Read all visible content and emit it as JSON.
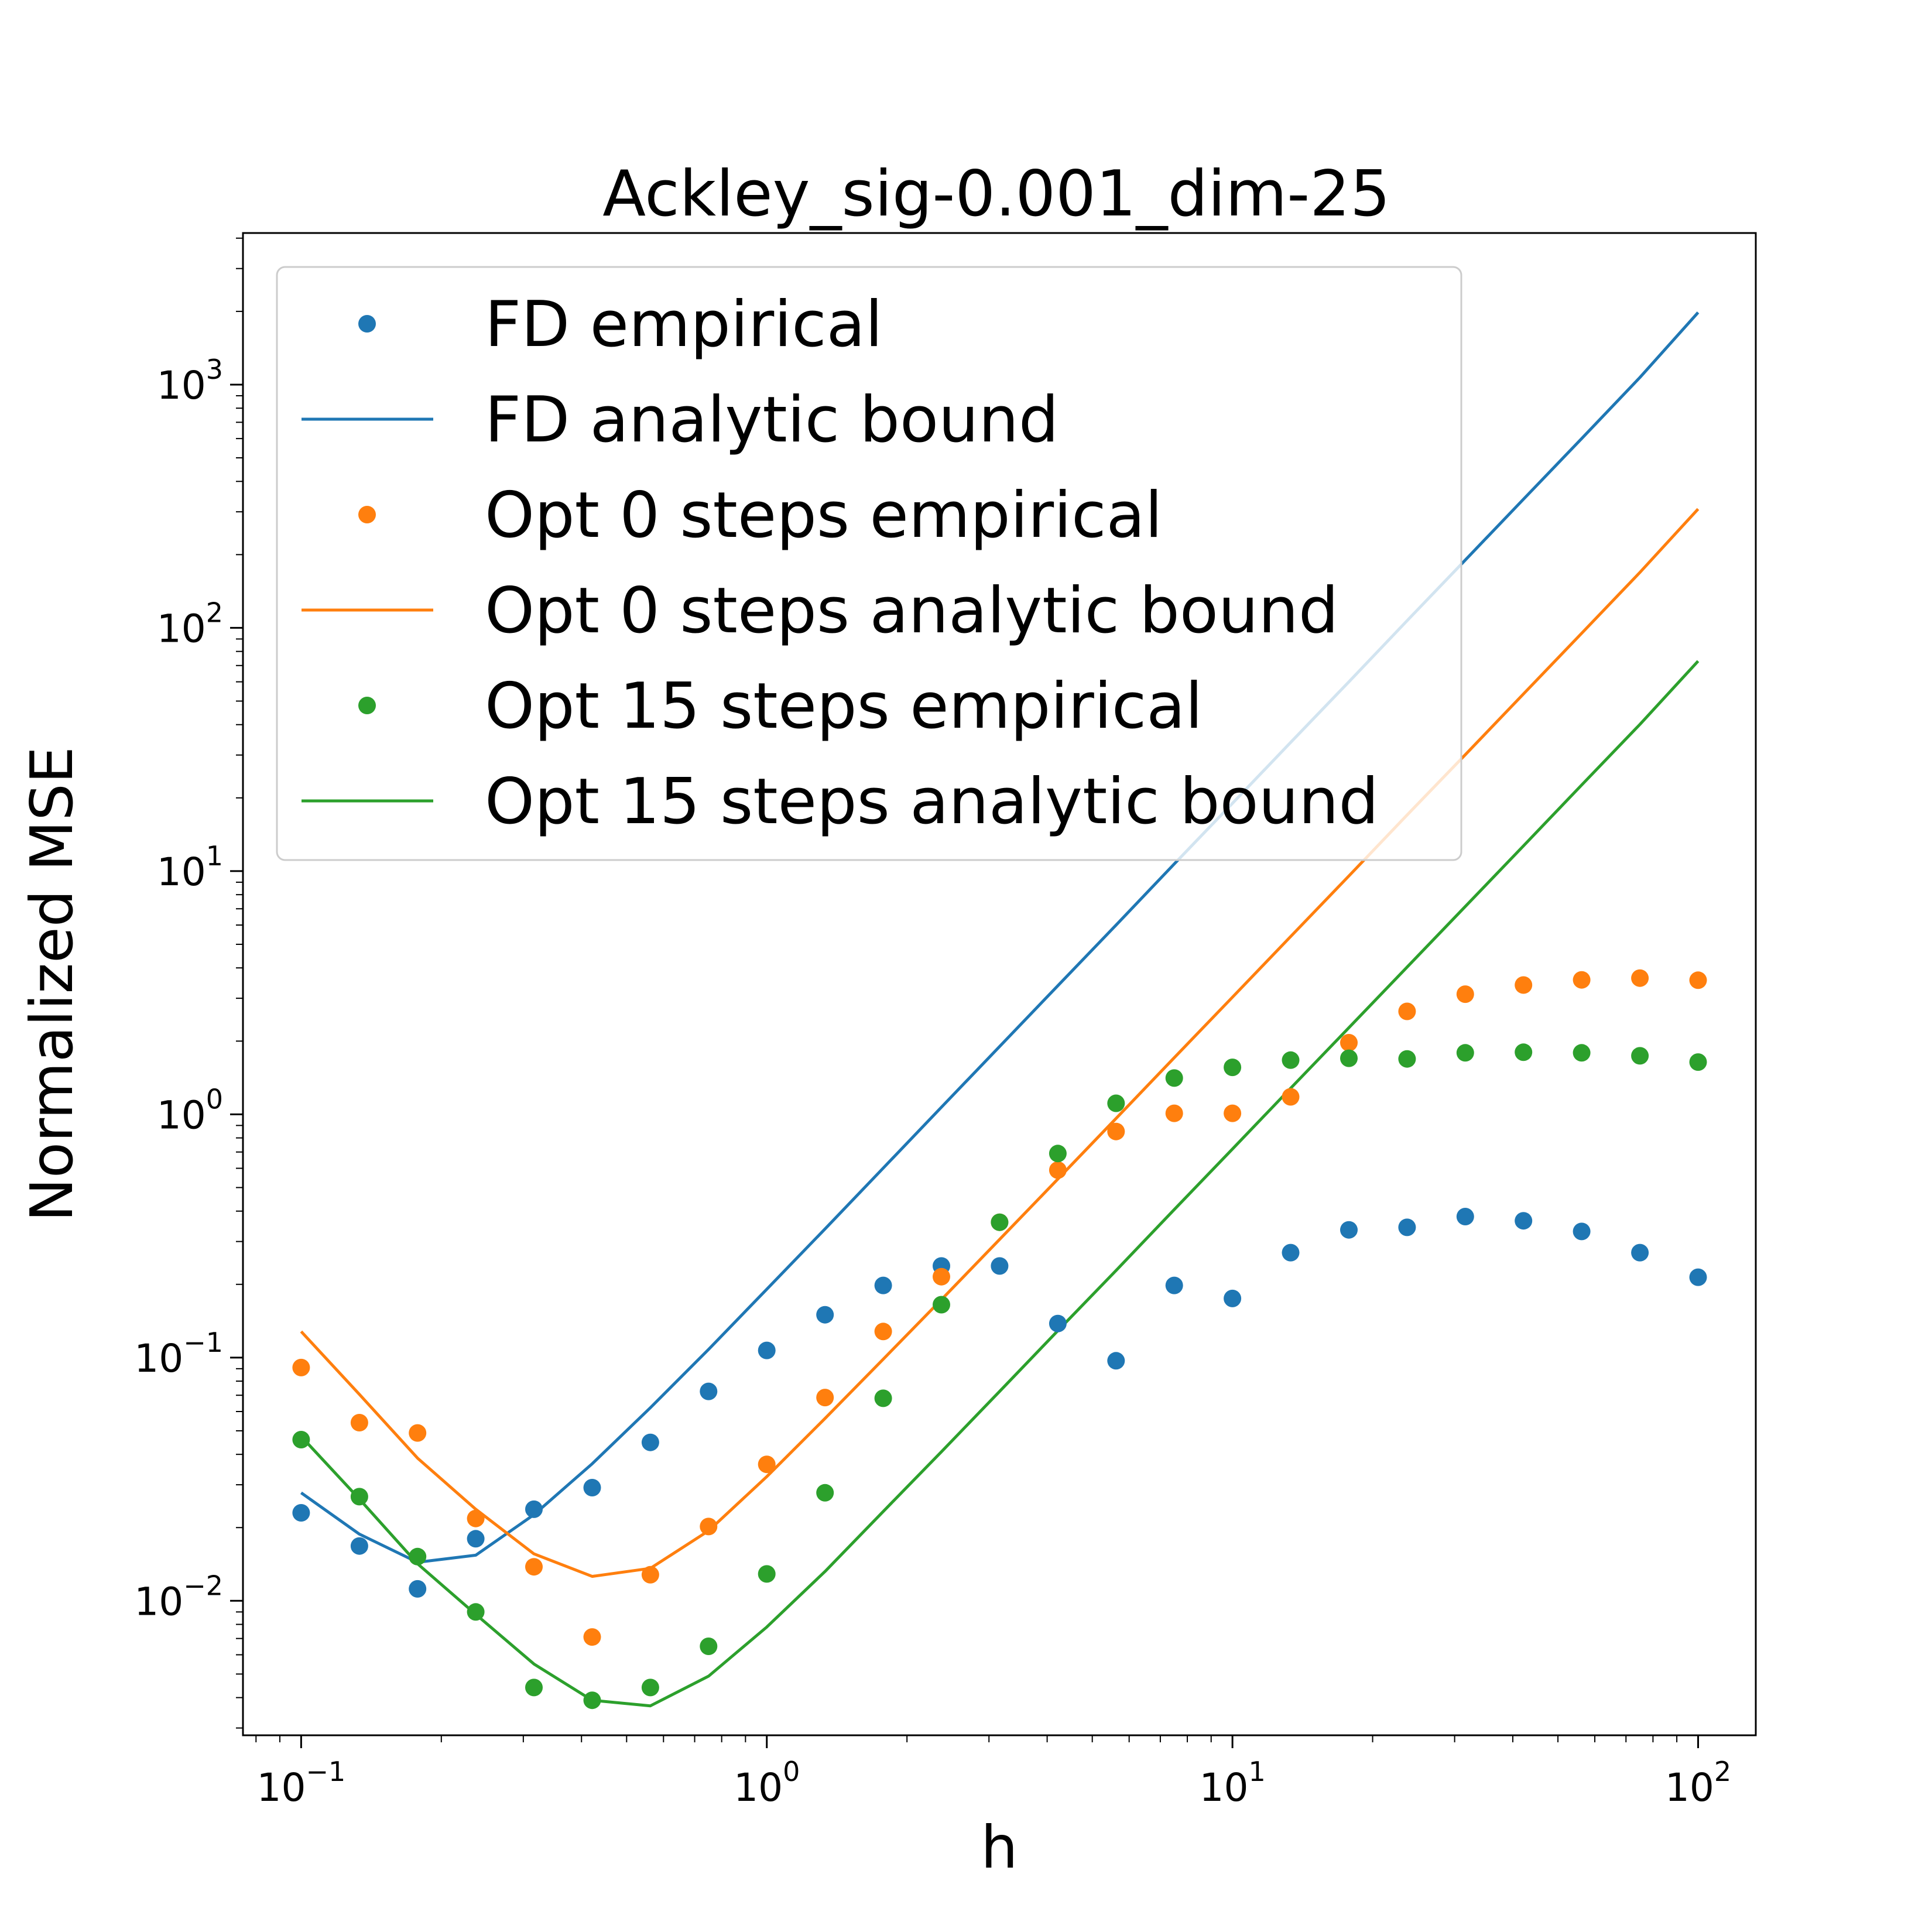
{
  "chart_data": {
    "type": "scatter",
    "title": "Ackley_sig-0.001_dim-25",
    "xlabel": "h",
    "ylabel": "Normalized MSE",
    "xscale": "log",
    "yscale": "log",
    "xlim": [
      0.075,
      133
    ],
    "ylim": [
      0.0028,
      4200
    ],
    "xticks": [
      {
        "value": 0.1,
        "base": "10",
        "exp": "−1"
      },
      {
        "value": 1,
        "base": "10",
        "exp": "0"
      },
      {
        "value": 10,
        "base": "10",
        "exp": "1"
      },
      {
        "value": 100,
        "base": "10",
        "exp": "2"
      }
    ],
    "yticks": [
      {
        "value": 0.01,
        "base": "10",
        "exp": "−2"
      },
      {
        "value": 0.1,
        "base": "10",
        "exp": "−1"
      },
      {
        "value": 1,
        "base": "10",
        "exp": "0"
      },
      {
        "value": 10,
        "base": "10",
        "exp": "1"
      },
      {
        "value": 100,
        "base": "10",
        "exp": "2"
      },
      {
        "value": 1000,
        "base": "10",
        "exp": "3"
      }
    ],
    "grid": false,
    "legend_position": "upper-left",
    "x": [
      0.1,
      0.1334,
      0.1778,
      0.2371,
      0.3162,
      0.4217,
      0.5623,
      0.7499,
      1.0,
      1.3335,
      1.7783,
      2.3714,
      3.1623,
      4.217,
      5.6234,
      7.4989,
      10.0,
      13.335,
      17.783,
      23.714,
      31.623,
      42.17,
      56.234,
      74.989,
      100.0
    ],
    "series": [
      {
        "name": "FD empirical",
        "kind": "scatter",
        "color": "#1f77b4",
        "values": [
          0.023,
          0.0168,
          0.0112,
          0.018,
          0.0238,
          0.0292,
          0.0448,
          0.0726,
          0.107,
          0.15,
          0.198,
          0.238,
          0.238,
          0.138,
          0.097,
          0.198,
          0.175,
          0.27,
          0.335,
          0.343,
          0.38,
          0.365,
          0.33,
          0.27,
          0.214
        ]
      },
      {
        "name": "FD analytic bound",
        "kind": "line",
        "color": "#1f77b4",
        "values": [
          0.0278,
          0.0188,
          0.0144,
          0.0154,
          0.0226,
          0.0366,
          0.0622,
          0.108,
          0.191,
          0.338,
          0.601,
          1.07,
          1.9,
          3.38,
          6.0,
          10.7,
          19.0,
          33.8,
          60.0,
          107,
          190,
          338,
          600,
          1070,
          1980
        ]
      },
      {
        "name": "Opt 0 steps empirical",
        "kind": "scatter",
        "color": "#ff7f0e",
        "values": [
          0.091,
          0.054,
          0.049,
          0.0218,
          0.0138,
          0.0071,
          0.0128,
          0.0202,
          0.0364,
          0.0685,
          0.128,
          0.215,
          0.36,
          0.59,
          0.85,
          1.01,
          1.01,
          1.18,
          1.97,
          2.65,
          3.12,
          3.4,
          3.57,
          3.63,
          3.56
        ]
      },
      {
        "name": "Opt 0 steps analytic bound",
        "kind": "line",
        "color": "#ff7f0e",
        "values": [
          0.128,
          0.0706,
          0.0386,
          0.0238,
          0.0156,
          0.0126,
          0.0136,
          0.0194,
          0.0324,
          0.0562,
          0.0985,
          0.173,
          0.306,
          0.542,
          0.962,
          1.71,
          3.03,
          5.38,
          9.55,
          17.0,
          30.1,
          53.5,
          95.0,
          169,
          308
        ]
      },
      {
        "name": "Opt 15 steps empirical",
        "kind": "scatter",
        "color": "#2ca02c",
        "values": [
          0.046,
          0.0268,
          0.0152,
          0.009,
          0.0044,
          0.0039,
          0.0044,
          0.0065,
          0.0129,
          0.0278,
          0.068,
          0.165,
          0.36,
          0.69,
          1.11,
          1.41,
          1.56,
          1.67,
          1.7,
          1.69,
          1.79,
          1.8,
          1.79,
          1.74,
          1.64
        ]
      },
      {
        "name": "Opt 15 steps analytic bound",
        "kind": "line",
        "color": "#2ca02c",
        "values": [
          0.0474,
          0.0262,
          0.0142,
          0.0088,
          0.0055,
          0.0039,
          0.0037,
          0.0049,
          0.0078,
          0.0132,
          0.0233,
          0.041,
          0.0726,
          0.129,
          0.228,
          0.406,
          0.72,
          1.28,
          2.27,
          4.03,
          7.15,
          12.7,
          22.6,
          40.1,
          73.0
        ]
      }
    ]
  }
}
